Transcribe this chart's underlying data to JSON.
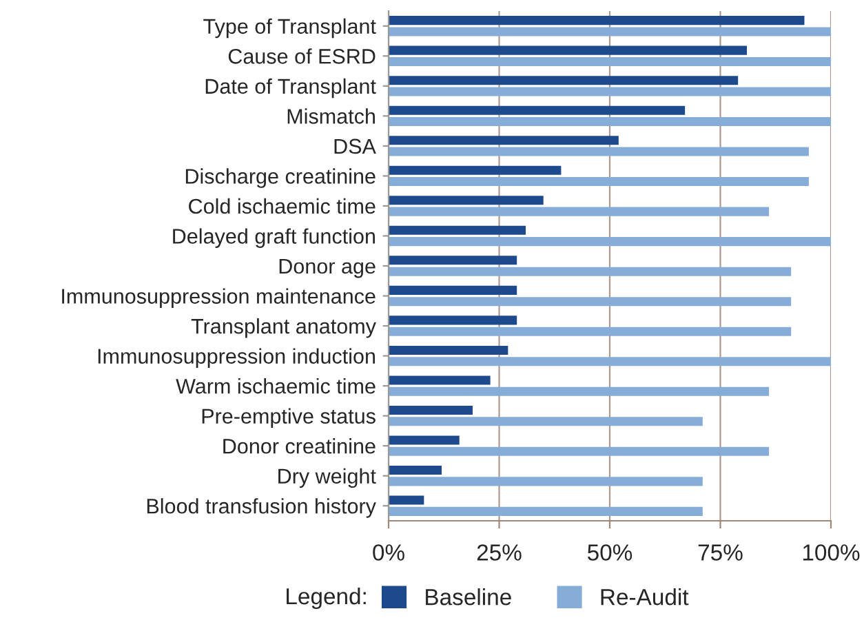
{
  "chart_data": {
    "type": "bar",
    "orientation": "horizontal",
    "categories": [
      "Type of Transplant",
      "Cause of ESRD",
      "Date of Transplant",
      "Mismatch",
      "DSA",
      "Discharge creatinine",
      "Cold ischaemic time",
      "Delayed graft function",
      "Donor age",
      "Immunosuppression maintenance",
      "Transplant anatomy",
      "Immunosuppression induction",
      "Warm ischaemic time",
      "Pre-emptive status",
      "Donor creatinine",
      "Dry weight",
      "Blood transfusion history"
    ],
    "series": [
      {
        "name": "Baseline",
        "color": "#1d4a8c",
        "values": [
          94,
          81,
          79,
          67,
          52,
          39,
          35,
          31,
          29,
          29,
          29,
          27,
          23,
          19,
          16,
          12,
          8
        ]
      },
      {
        "name": "Re-Audit",
        "color": "#86acd8",
        "values": [
          100,
          100,
          100,
          100,
          95,
          95,
          86,
          100,
          91,
          91,
          91,
          100,
          86,
          71,
          86,
          71,
          71
        ]
      }
    ],
    "xlim": [
      0,
      100
    ],
    "xticks": [
      {
        "value": 0,
        "label": "0%"
      },
      {
        "value": 25,
        "label": "25%"
      },
      {
        "value": 50,
        "label": "50%"
      },
      {
        "value": 75,
        "label": "75%"
      },
      {
        "value": 100,
        "label": "100%"
      }
    ],
    "grid": "x",
    "legend": "bottom",
    "legend_title": "Legend:"
  }
}
